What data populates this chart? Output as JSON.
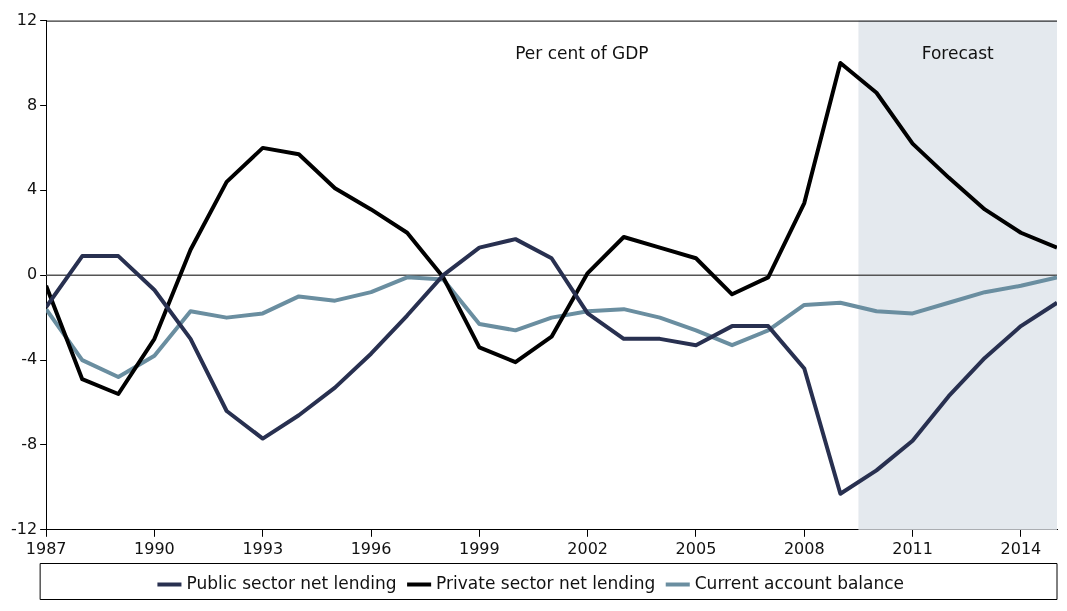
{
  "chart_data": {
    "type": "line",
    "x": [
      1987,
      1988,
      1989,
      1990,
      1991,
      1992,
      1993,
      1994,
      1995,
      1996,
      1997,
      1998,
      1999,
      2000,
      2001,
      2002,
      2003,
      2004,
      2005,
      2006,
      2007,
      2008,
      2009,
      2010,
      2011,
      2012,
      2013,
      2014,
      2015
    ],
    "series": [
      {
        "name": "Public sector net lending",
        "color": "#283050",
        "values": [
          -1.5,
          0.9,
          0.9,
          -0.7,
          -3.0,
          -6.4,
          -7.7,
          -6.6,
          -5.3,
          -3.7,
          -1.9,
          0.0,
          1.3,
          1.7,
          0.8,
          -1.8,
          -3.0,
          -3.0,
          -3.3,
          -2.4,
          -2.4,
          -4.4,
          -10.3,
          -9.2,
          -7.8,
          -5.7,
          -3.9,
          -2.4,
          -1.3
        ]
      },
      {
        "name": "Private sector net lending",
        "color": "#000000",
        "values": [
          -0.5,
          -4.9,
          -5.6,
          -3.0,
          1.2,
          4.4,
          6.0,
          5.7,
          4.1,
          3.1,
          2.0,
          -0.1,
          -3.4,
          -4.1,
          -2.9,
          0.1,
          1.8,
          1.3,
          0.8,
          -0.9,
          -0.1,
          3.4,
          10.0,
          8.6,
          6.2,
          4.6,
          3.1,
          2.0,
          1.3
        ]
      },
      {
        "name": "Current account balance",
        "color": "#6a8ea0",
        "values": [
          -1.6,
          -4.0,
          -4.8,
          -3.8,
          -1.7,
          -2.0,
          -1.8,
          -1.0,
          -1.2,
          -0.8,
          -0.1,
          -0.2,
          -2.3,
          -2.6,
          -2.0,
          -1.7,
          -1.6,
          -2.0,
          -2.6,
          -3.3,
          -2.6,
          -1.4,
          -1.3,
          -1.7,
          -1.8,
          -1.3,
          -0.8,
          -0.5,
          -0.1
        ]
      }
    ],
    "xlim": [
      1987,
      2015
    ],
    "xticks": [
      1987,
      1990,
      1993,
      1996,
      1999,
      2002,
      2005,
      2008,
      2011,
      2014
    ],
    "ylim": [
      -12,
      12
    ],
    "yticks": [
      -12,
      -8,
      -4,
      0,
      4,
      8,
      12
    ],
    "ref_lines": [
      {
        "axis": "y",
        "value": 0,
        "color": "#555555"
      }
    ],
    "bands": [
      {
        "axis": "x",
        "from": 2009.5,
        "to": 2015,
        "label": "Forecast",
        "color": "#e4e9ee"
      }
    ],
    "annotations": [
      "Per cent of GDP"
    ],
    "grid": false,
    "legend": "bottom",
    "marker": "none",
    "line_style": "solid"
  }
}
